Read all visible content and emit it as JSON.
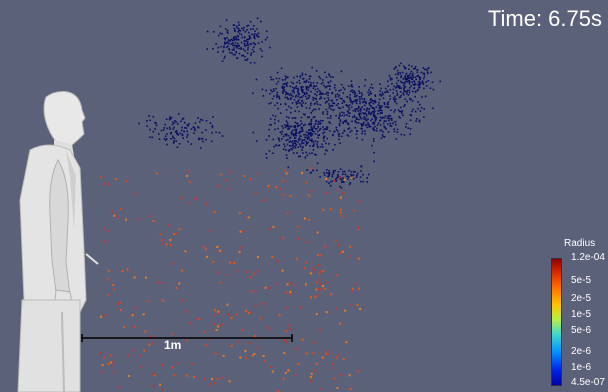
{
  "viewer": {
    "time_text": "Time: 6.75s",
    "scale_bar_label": "1m"
  },
  "legend": {
    "title": "Radius",
    "ticks": [
      "1.2e-04",
      "5e-5",
      "2e-5",
      "1e-5",
      "5e-6",
      "2e-6",
      "1e-6",
      "4.5e-07"
    ]
  },
  "colors": {
    "background": "#5b6178",
    "fine_particle": "#0a1163",
    "coarse_particle": "#d64520",
    "figure": "#e6e6e6"
  }
}
